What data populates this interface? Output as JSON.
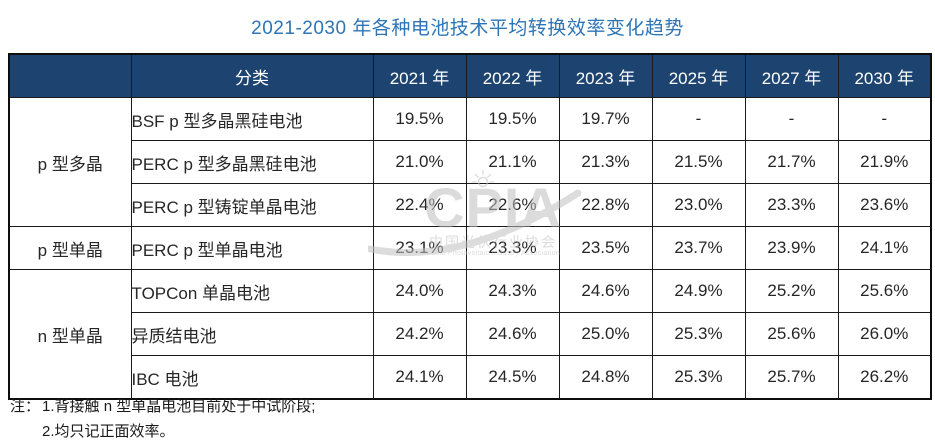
{
  "colors": {
    "title_text": "#2E75B6",
    "header_bg": "#1D4471",
    "header_text": "#FFFFFF",
    "border": "#1A1A1A",
    "cell_text": "#262626",
    "watermark": "#BFBFBF"
  },
  "chart_data": {
    "type": "table",
    "title": "2021-2030 年各种电池技术平均转换效率变化趋势",
    "columns": [
      "",
      "分类",
      "2021 年",
      "2022 年",
      "2023 年",
      "2025 年",
      "2027 年",
      "2030 年"
    ],
    "groups": [
      {
        "name": "p 型多晶",
        "rows": [
          {
            "label": "BSF p 型多晶黑硅电池",
            "values": [
              "19.5%",
              "19.5%",
              "19.7%",
              "-",
              "-",
              "-"
            ]
          },
          {
            "label": "PERC p 型多晶黑硅电池",
            "values": [
              "21.0%",
              "21.1%",
              "21.3%",
              "21.5%",
              "21.7%",
              "21.9%"
            ]
          },
          {
            "label": "PERC p 型铸锭单晶电池",
            "values": [
              "22.4%",
              "22.6%",
              "22.8%",
              "23.0%",
              "23.3%",
              "23.6%"
            ]
          }
        ]
      },
      {
        "name": "p 型单晶",
        "rows": [
          {
            "label": "PERC p 型单晶电池",
            "values": [
              "23.1%",
              "23.3%",
              "23.5%",
              "23.7%",
              "23.9%",
              "24.1%"
            ]
          }
        ]
      },
      {
        "name": "n 型单晶",
        "rows": [
          {
            "label": "TOPCon 单晶电池",
            "values": [
              "24.0%",
              "24.3%",
              "24.6%",
              "24.9%",
              "25.2%",
              "25.6%"
            ]
          },
          {
            "label": "异质结电池",
            "values": [
              "24.2%",
              "24.6%",
              "25.0%",
              "25.3%",
              "25.6%",
              "26.0%"
            ]
          },
          {
            "label": "IBC 电池",
            "values": [
              "24.1%",
              "24.5%",
              "24.8%",
              "25.3%",
              "25.7%",
              "26.2%"
            ]
          }
        ]
      }
    ],
    "notes_label": "注：",
    "notes": [
      "1.背接触 n 型单晶电池目前处于中试阶段;",
      "2.均只记正面效率。"
    ]
  },
  "watermark": {
    "acronym": "CPIA",
    "cn_name": "中国光伏行业协会",
    "en_name": "China Photovoltaic Industry Association"
  }
}
